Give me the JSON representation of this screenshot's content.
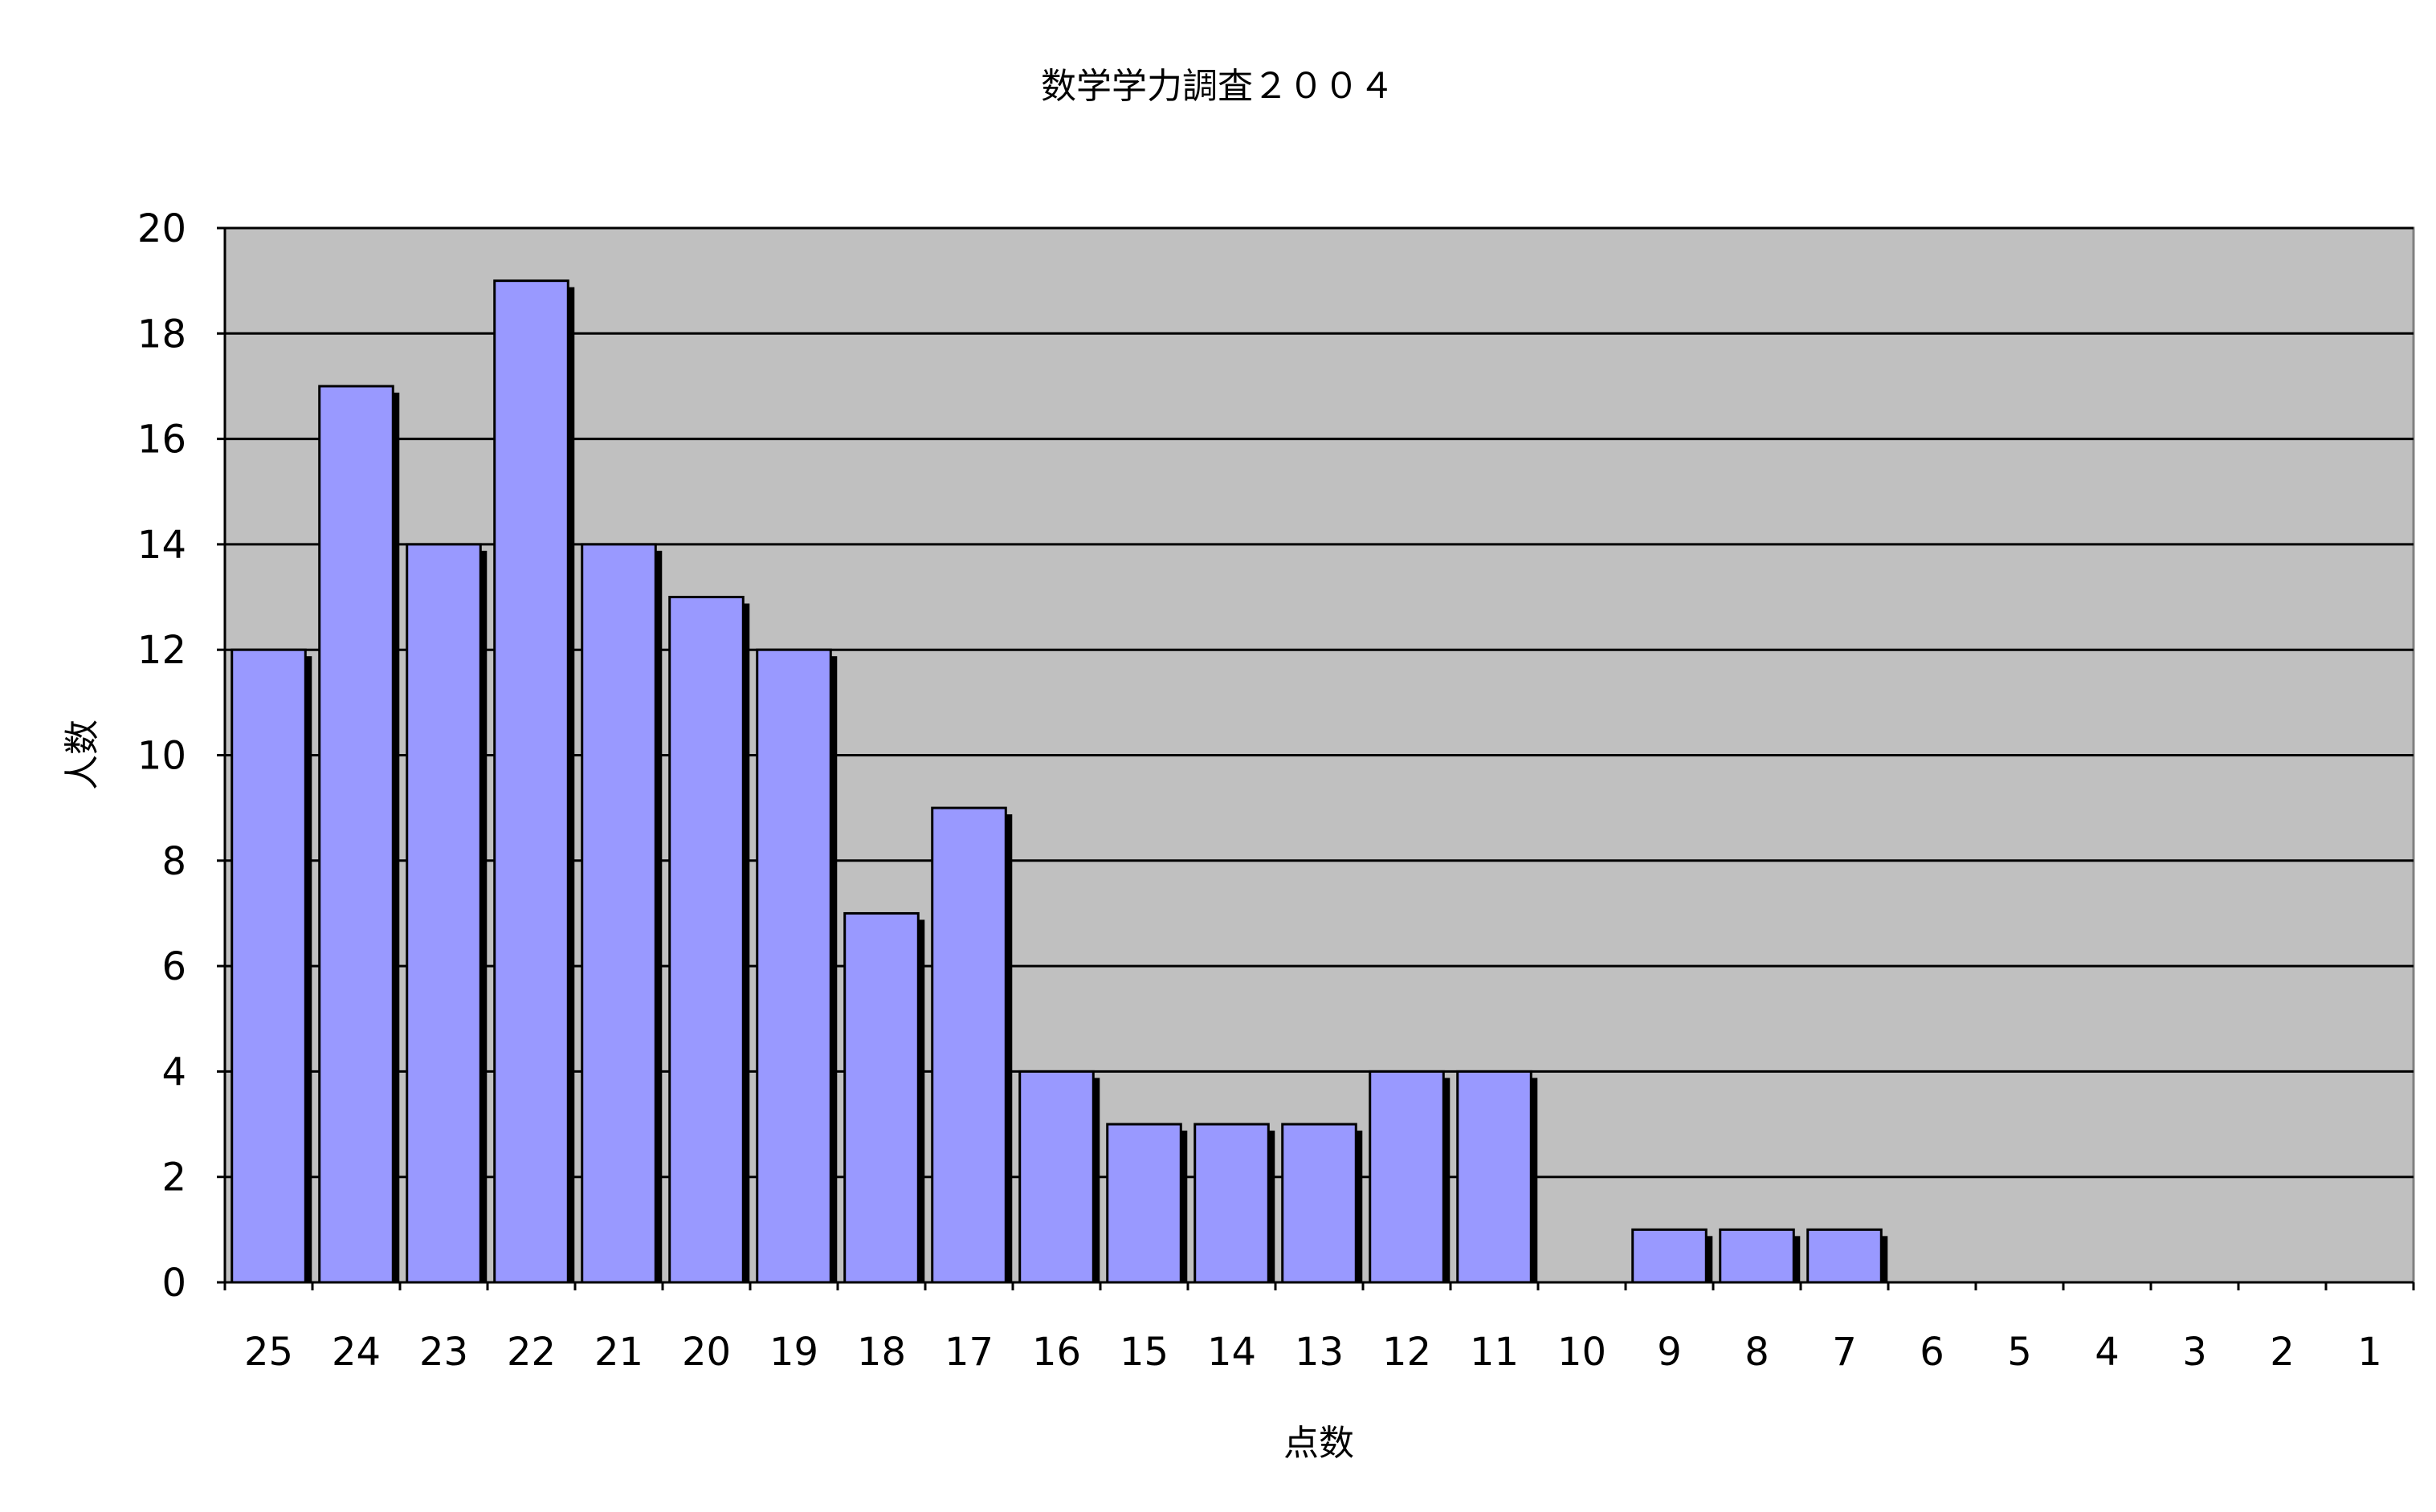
{
  "chart_data": {
    "type": "bar",
    "title": "数学学力調査２００４",
    "xlabel": "点数",
    "ylabel": "人数",
    "categories": [
      "25",
      "24",
      "23",
      "22",
      "21",
      "20",
      "19",
      "18",
      "17",
      "16",
      "15",
      "14",
      "13",
      "12",
      "11",
      "10",
      "9",
      "8",
      "7",
      "6",
      "5",
      "4",
      "3",
      "2",
      "1"
    ],
    "values": [
      12,
      17,
      14,
      19,
      14,
      13,
      12,
      7,
      9,
      4,
      3,
      3,
      3,
      4,
      4,
      0,
      1,
      1,
      1,
      0,
      0,
      0,
      0,
      0,
      0
    ],
    "ylim": [
      0,
      20
    ],
    "yticks": [
      0,
      2,
      4,
      6,
      8,
      10,
      12,
      14,
      16,
      18,
      20
    ],
    "grid": true,
    "legend": "none",
    "colors": {
      "bar_fill": "#9999ff",
      "plot_background": "#c0c0c0",
      "bar_shadow": "#000000",
      "gridline": "#000000"
    }
  }
}
